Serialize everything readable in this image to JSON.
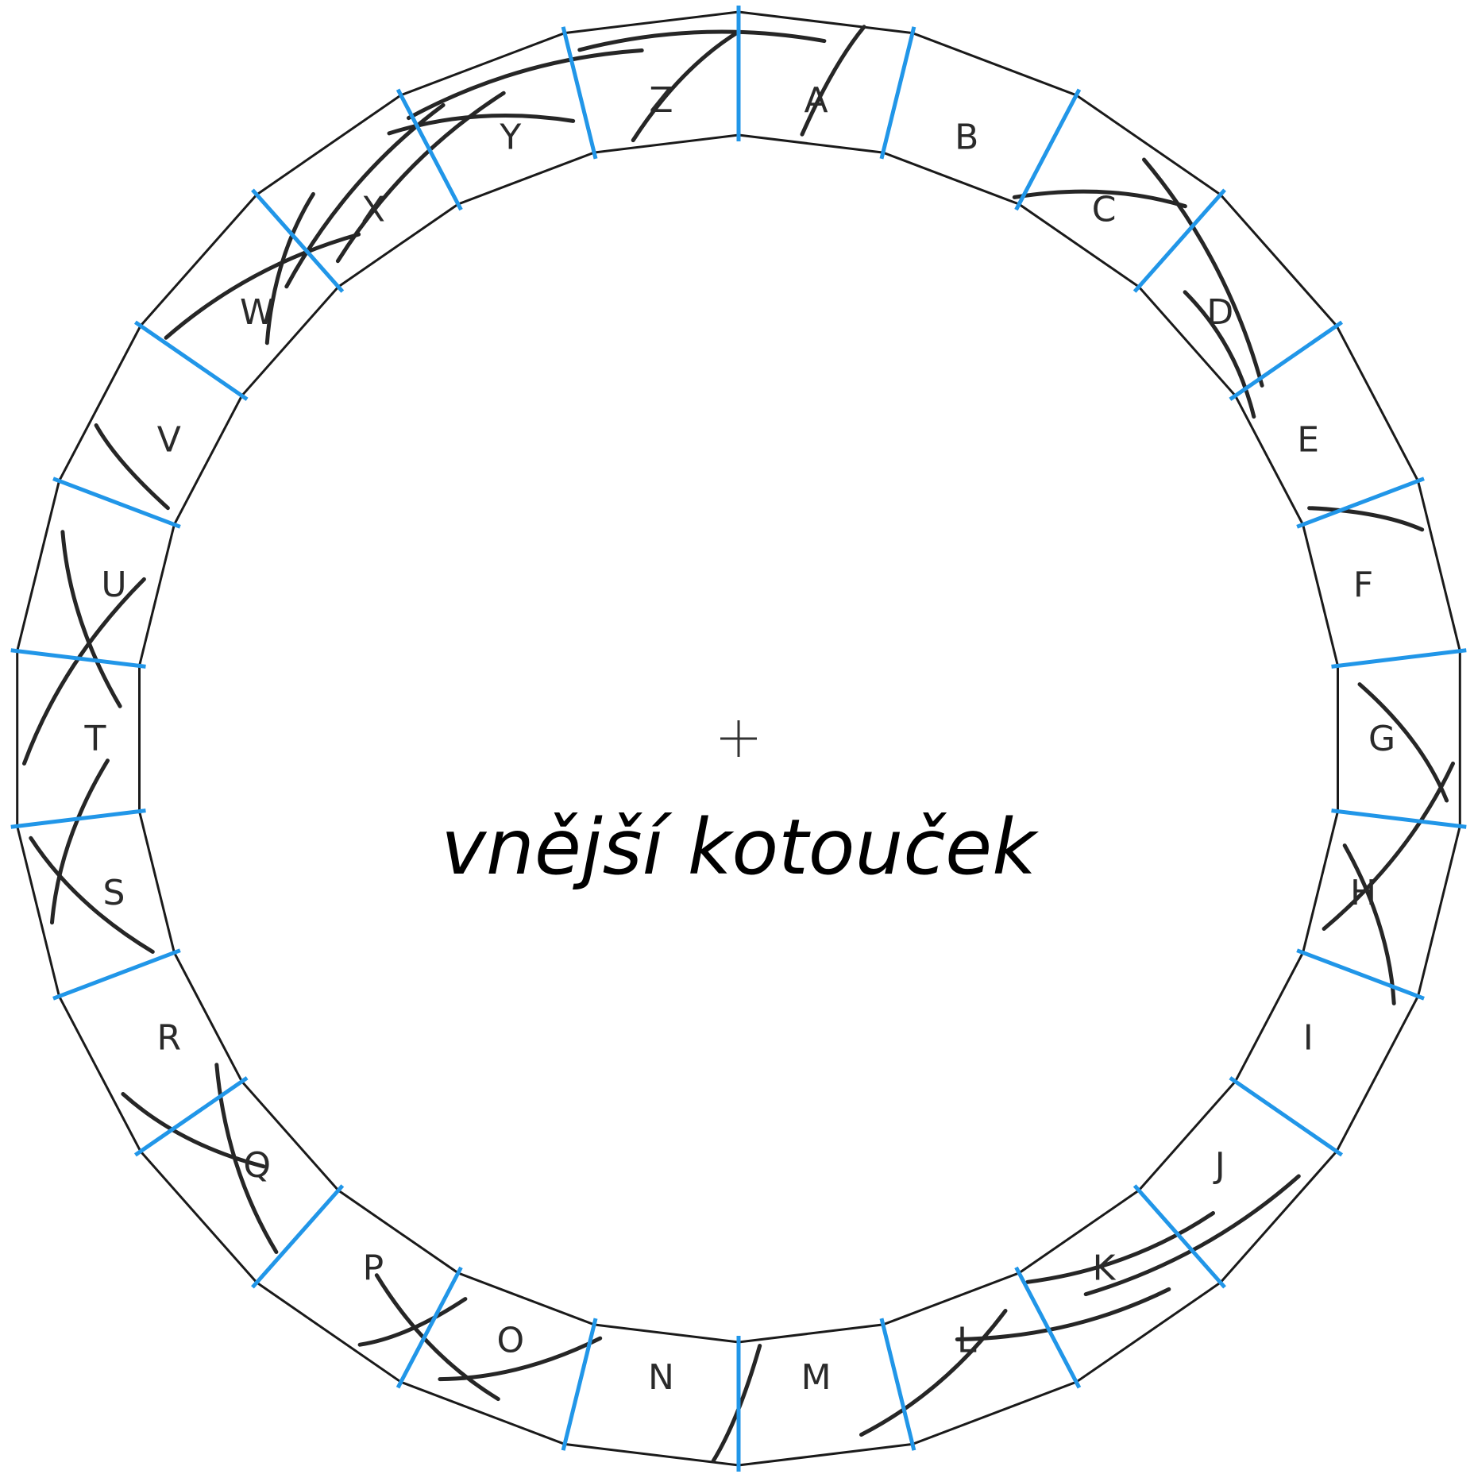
{
  "title": "vnější kotouček",
  "segments": [
    "A",
    "B",
    "C",
    "D",
    "E",
    "F",
    "G",
    "H",
    "I",
    "J",
    "K",
    "L",
    "M",
    "N",
    "O",
    "P",
    "Q",
    "R",
    "S",
    "T",
    "U",
    "V",
    "W",
    "X",
    "Y",
    "Z"
  ],
  "colors": {
    "divider": "#2196e8",
    "ring": "#1a1a1a",
    "wire": "#262626"
  },
  "center_mark": "+"
}
